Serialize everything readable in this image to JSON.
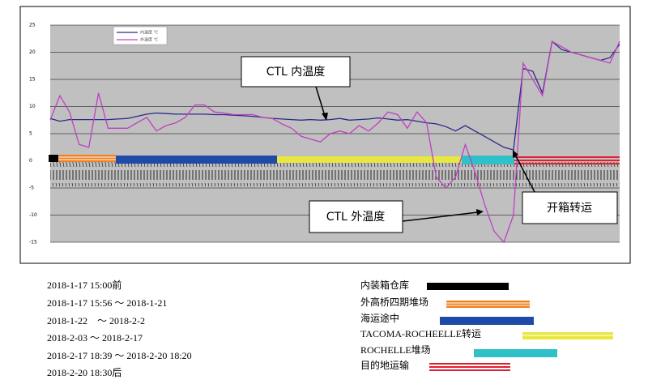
{
  "chart_data": {
    "type": "line",
    "categories": [
      null,
      null,
      null,
      null,
      null,
      null,
      null,
      null,
      null,
      null,
      null,
      null,
      null,
      null,
      null,
      null,
      null,
      null,
      null,
      null,
      null,
      null,
      null,
      null,
      null,
      null,
      null,
      null,
      null,
      null,
      null,
      null,
      null,
      null,
      null,
      null,
      null,
      null,
      null,
      null,
      null,
      null,
      null,
      null,
      null,
      null,
      null,
      null,
      null,
      null,
      null,
      null,
      null,
      null,
      null,
      null,
      null,
      null,
      null,
      null
    ],
    "series": [
      {
        "name": "内温度 ℃",
        "color": "#2a2a8a",
        "values": [
          7.8,
          7.3,
          7.6,
          7.6,
          7.6,
          7.6,
          7.6,
          7.7,
          7.8,
          8.2,
          8.6,
          8.8,
          8.7,
          8.6,
          8.6,
          8.6,
          8.6,
          8.5,
          8.5,
          8.4,
          8.3,
          8.2,
          8.0,
          7.8,
          7.7,
          7.6,
          7.5,
          7.6,
          7.5,
          7.6,
          7.8,
          7.5,
          7.6,
          7.7,
          7.9,
          7.7,
          7.5,
          7.6,
          7.3,
          7.0,
          6.8,
          6.3,
          5.5,
          6.5,
          5.5,
          4.5,
          3.5,
          2.5,
          2.0,
          17.0,
          16.5,
          12.5,
          22.0,
          20.5,
          20.0,
          19.5,
          19.0,
          18.5,
          19.0,
          21.5
        ]
      },
      {
        "name": "外温度 ℃",
        "color": "#c040c0",
        "values": [
          7.5,
          12,
          9,
          3,
          2.5,
          12.5,
          6,
          6,
          6,
          7,
          8,
          5.5,
          6.5,
          7,
          8,
          10.3,
          10.3,
          9,
          8.8,
          8.5,
          8.5,
          8.5,
          8,
          7.8,
          6.8,
          6,
          4.5,
          4,
          3.5,
          5,
          5.5,
          5,
          6.5,
          5.5,
          7,
          9,
          8.5,
          6,
          9,
          7,
          -3,
          -5,
          -3,
          3,
          -2,
          -8,
          -13,
          -15,
          -10,
          18,
          15,
          12,
          22,
          21,
          20,
          19.5,
          19,
          18.5,
          18,
          22
        ]
      }
    ],
    "ylim": [
      -15,
      25
    ],
    "yticks": [
      25,
      20,
      15,
      10,
      5,
      0,
      -5,
      -10,
      -15
    ],
    "grid": true,
    "annotations": [
      "CTL 内温度",
      "CTL 外温度",
      "开箱转运"
    ]
  },
  "notes": {
    "periods": [
      "2018-1-17 15:00前",
      "2018-1-17 15:56 ～ 2018-1-21",
      "2018-1-22　～ 2018-2-2",
      "2018-2-03 ～ 2018-2-17",
      "2018-2-17 18:39 ～ 2018-2-20 18:20",
      "2018-2-20 18:30后"
    ],
    "phases": [
      "内装箱仓库",
      "外高桥四期堆场",
      "海运途中",
      "TACOMA-ROCHEELLE转运",
      "ROCHELLE堆场",
      "目的地运输"
    ]
  }
}
